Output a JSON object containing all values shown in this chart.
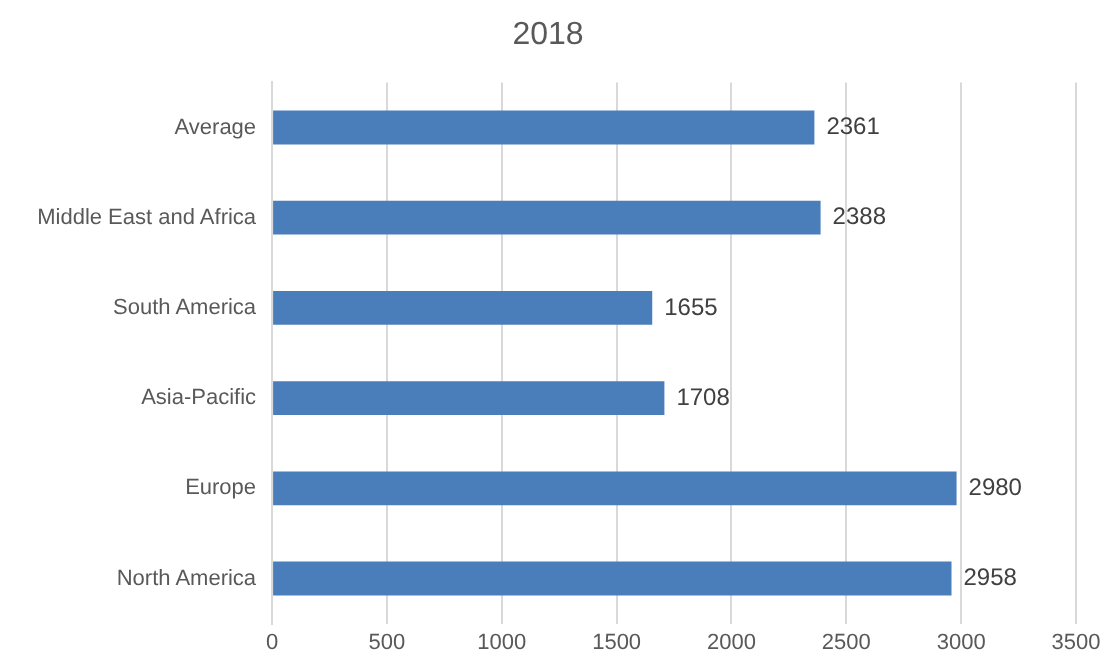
{
  "chart_data": {
    "type": "bar",
    "title": "2018",
    "orientation": "horizontal",
    "categories": [
      "Average",
      "Middle East and Africa",
      "South America",
      "Asia-Pacific",
      "Europe",
      "North America"
    ],
    "values": [
      2361,
      2388,
      1655,
      1708,
      2980,
      2958
    ],
    "color": "#4a7ebb",
    "xlim": [
      0,
      3500
    ],
    "xticks": [
      0,
      500,
      1000,
      1500,
      2000,
      2500,
      3000,
      3500
    ],
    "grid": "x",
    "data_labels": true,
    "legend": false
  }
}
